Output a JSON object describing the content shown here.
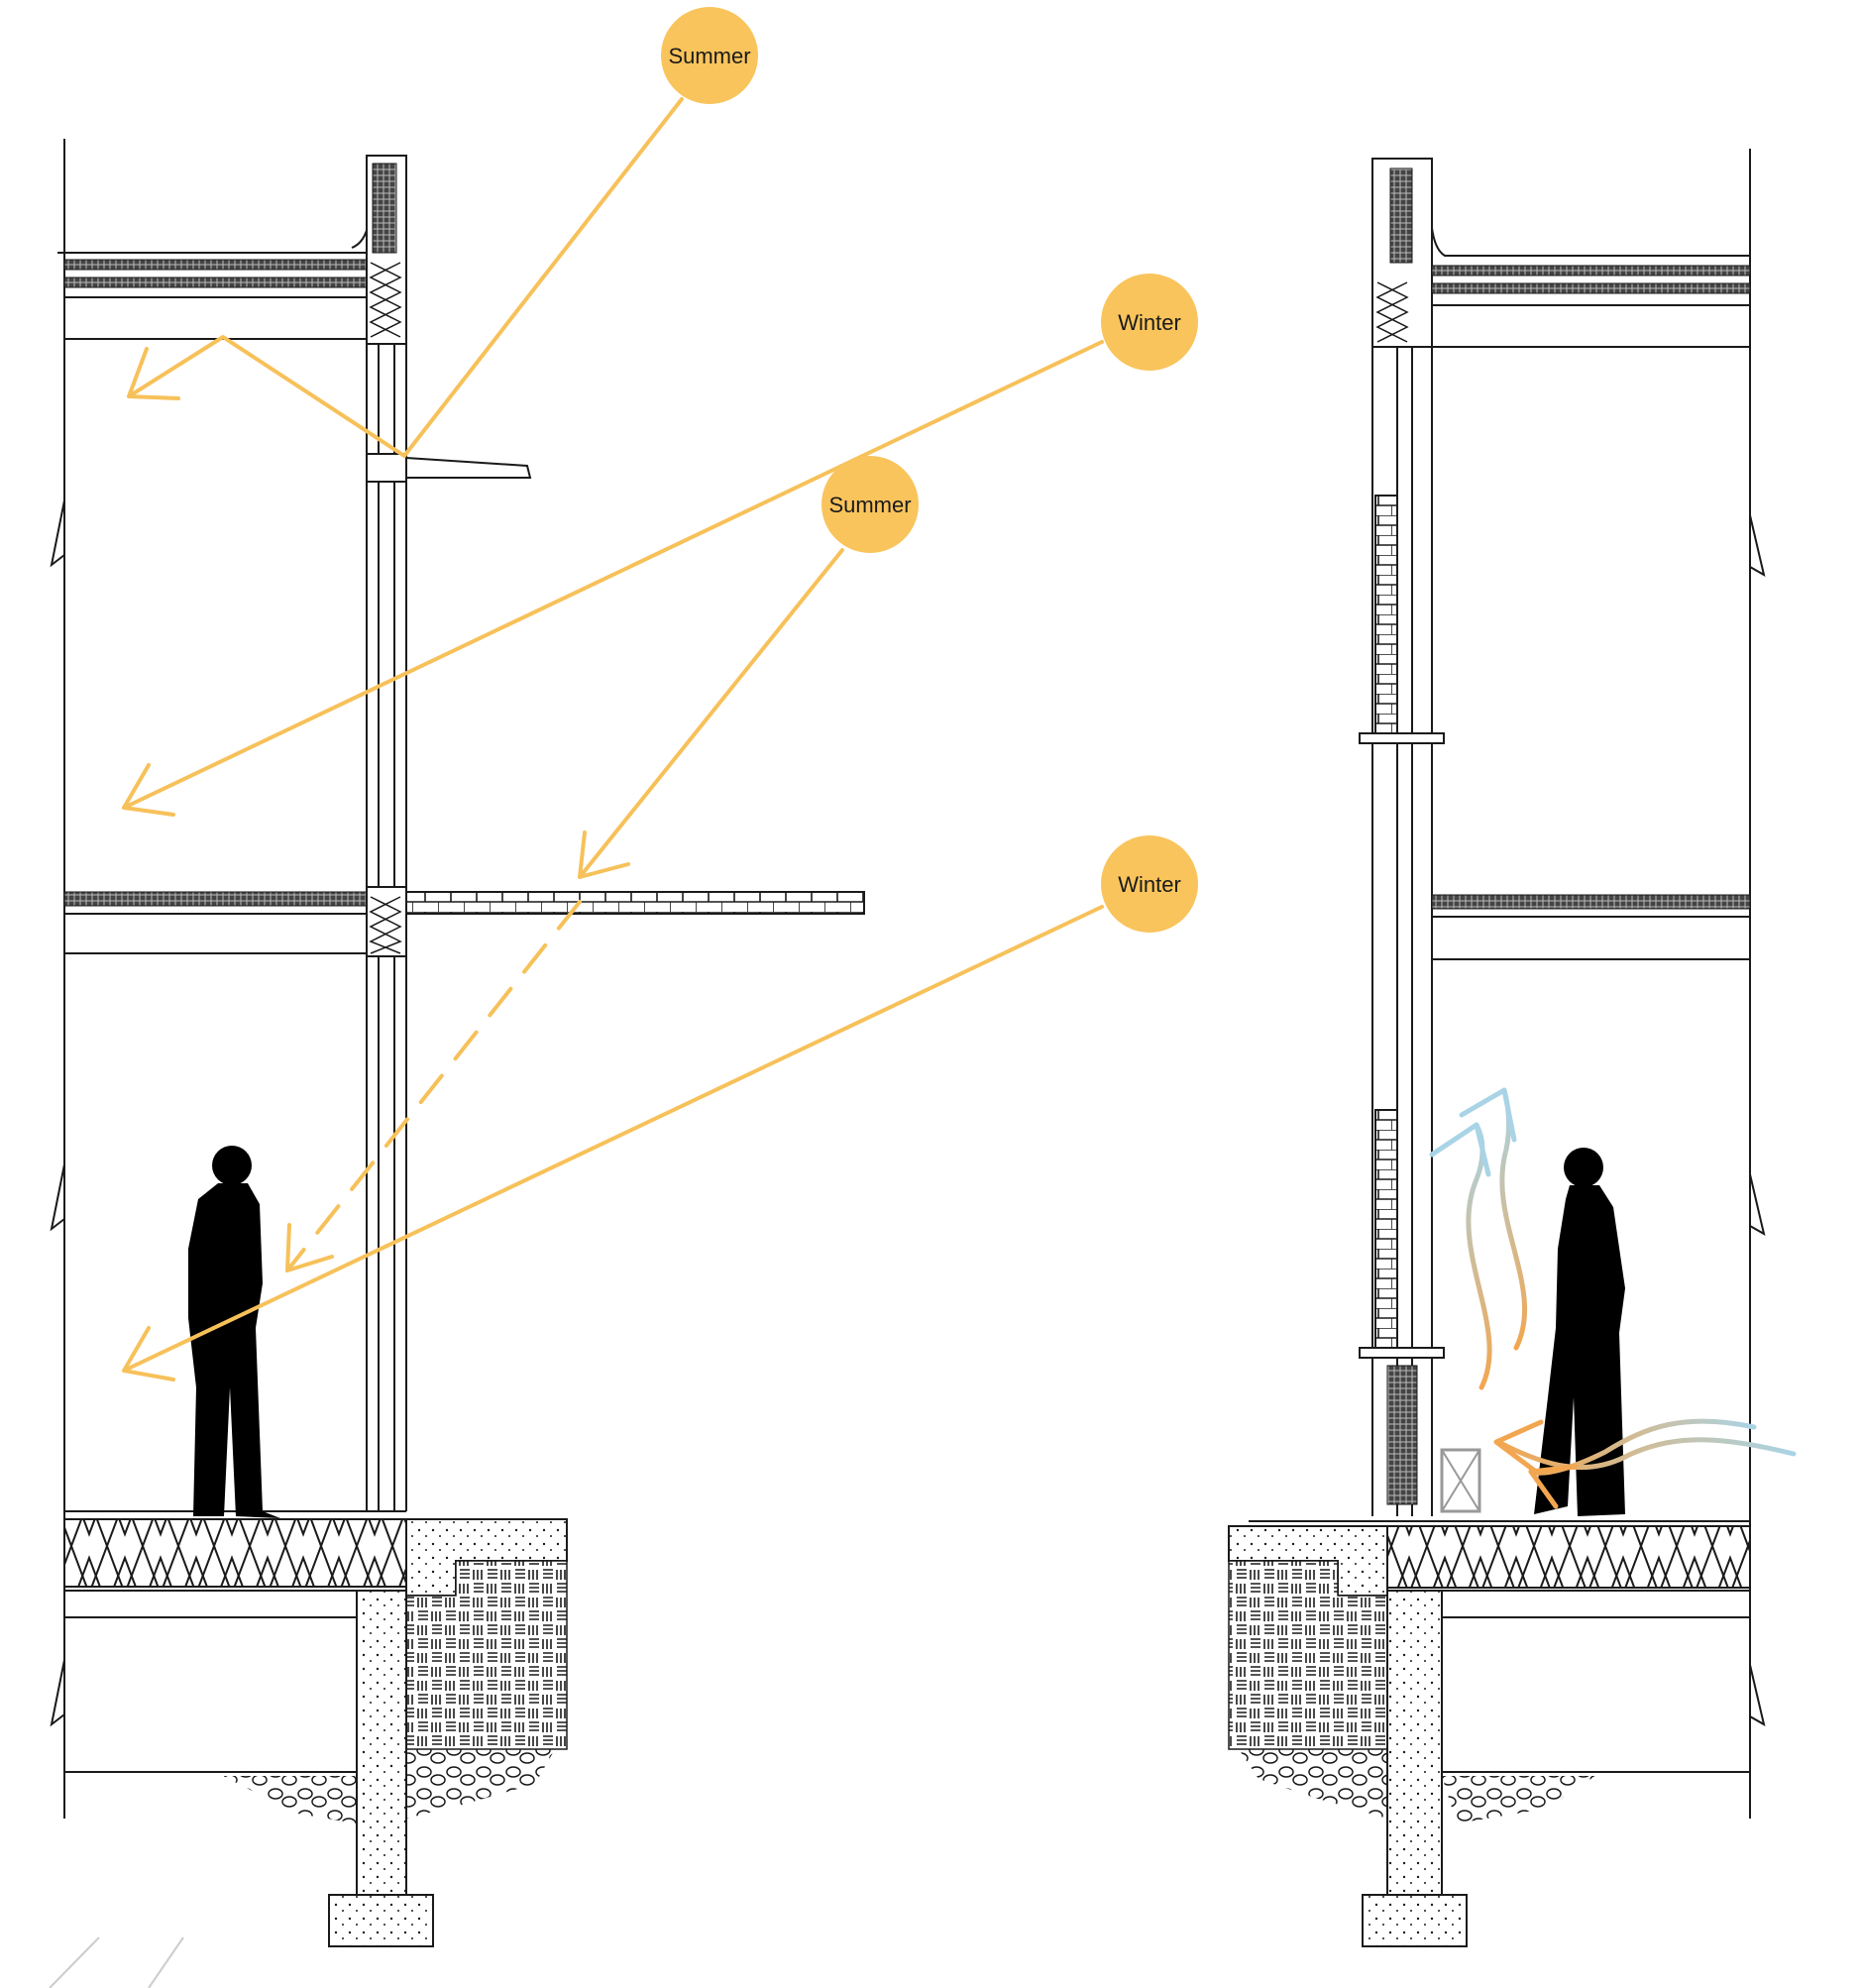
{
  "suns": [
    {
      "id": "summer-upper",
      "label": "Summer"
    },
    {
      "id": "winter-upper",
      "label": "Winter"
    },
    {
      "id": "summer-lower",
      "label": "Summer"
    },
    {
      "id": "winter-lower",
      "label": "Winter"
    }
  ],
  "colors": {
    "sun": "#f9c45c",
    "sun_ray": "#f7c15a",
    "warm_air": "#f2a650",
    "cool_air": "#a9d4e6",
    "linework": "#1a1a1a"
  }
}
